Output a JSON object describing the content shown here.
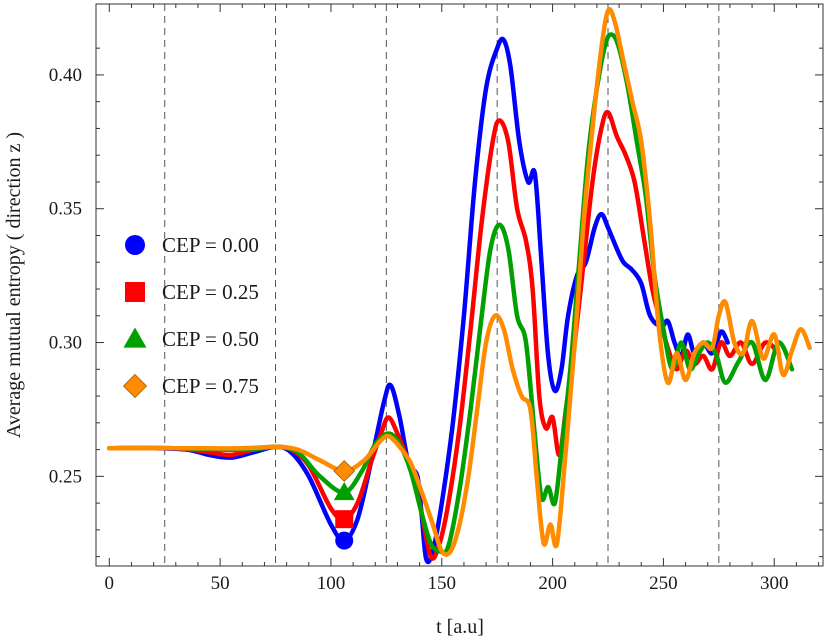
{
  "chart_data": {
    "type": "line",
    "xlabel": "t  [a.u]",
    "ylabel": "Average  mutual  entropy   ( direction  z )",
    "xlim": [
      -6,
      322
    ],
    "ylim": [
      0.2165,
      0.4265
    ],
    "xticks": [
      0,
      50,
      100,
      150,
      200,
      250,
      300
    ],
    "xtick_labels": [
      "0",
      "50",
      "100",
      "150",
      "200",
      "250",
      "300"
    ],
    "yticks": [
      0.25,
      0.3,
      0.35,
      0.4
    ],
    "ytick_labels": [
      "0.25",
      "0.30",
      "0.35",
      "0.40"
    ],
    "vlines": [
      25,
      75,
      125,
      175,
      225,
      275
    ],
    "legend_position": "left-center",
    "series": [
      {
        "name": "CEP = 0.00",
        "color": "#0000ff",
        "marker": "circle",
        "points": [
          [
            0,
            0.2605
          ],
          [
            20,
            0.2605
          ],
          [
            35,
            0.26
          ],
          [
            45,
            0.258
          ],
          [
            55,
            0.257
          ],
          [
            65,
            0.259
          ],
          [
            75,
            0.261
          ],
          [
            82,
            0.259
          ],
          [
            90,
            0.25
          ],
          [
            100,
            0.232
          ],
          [
            106,
            0.226
          ],
          [
            112,
            0.234
          ],
          [
            118,
            0.255
          ],
          [
            124,
            0.278
          ],
          [
            127,
            0.284
          ],
          [
            131,
            0.272
          ],
          [
            135,
            0.255
          ],
          [
            139,
            0.25
          ],
          [
            141,
            0.235
          ],
          [
            143,
            0.219
          ],
          [
            146,
            0.222
          ],
          [
            150,
            0.24
          ],
          [
            155,
            0.27
          ],
          [
            160,
            0.31
          ],
          [
            165,
            0.36
          ],
          [
            170,
            0.395
          ],
          [
            175,
            0.41
          ],
          [
            178,
            0.413
          ],
          [
            181,
            0.403
          ],
          [
            185,
            0.375
          ],
          [
            189,
            0.36
          ],
          [
            192,
            0.363
          ],
          [
            195,
            0.33
          ],
          [
            198,
            0.295
          ],
          [
            201,
            0.282
          ],
          [
            204,
            0.29
          ],
          [
            207,
            0.31
          ],
          [
            211,
            0.325
          ],
          [
            215,
            0.33
          ],
          [
            219,
            0.343
          ],
          [
            222,
            0.348
          ],
          [
            225,
            0.343
          ],
          [
            229,
            0.335
          ],
          [
            232,
            0.33
          ],
          [
            236,
            0.327
          ],
          [
            240,
            0.322
          ],
          [
            244,
            0.31
          ],
          [
            249,
            0.306
          ],
          [
            252,
            0.308
          ],
          [
            255,
            0.3
          ],
          [
            258,
            0.295
          ],
          [
            261,
            0.303
          ],
          [
            264,
            0.296
          ],
          [
            268,
            0.3
          ],
          [
            272,
            0.296
          ],
          [
            276,
            0.304
          ],
          [
            279,
            0.3
          ]
        ],
        "marker_at": [
          106,
          0.226
        ]
      },
      {
        "name": "CEP = 0.25",
        "color": "#ff0000",
        "marker": "square",
        "points": [
          [
            0,
            0.2605
          ],
          [
            30,
            0.2605
          ],
          [
            45,
            0.259
          ],
          [
            55,
            0.258
          ],
          [
            65,
            0.26
          ],
          [
            75,
            0.261
          ],
          [
            82,
            0.26
          ],
          [
            90,
            0.254
          ],
          [
            100,
            0.238
          ],
          [
            106,
            0.234
          ],
          [
            112,
            0.24
          ],
          [
            118,
            0.255
          ],
          [
            123,
            0.267
          ],
          [
            126,
            0.272
          ],
          [
            130,
            0.266
          ],
          [
            135,
            0.255
          ],
          [
            140,
            0.24
          ],
          [
            145,
            0.22
          ],
          [
            149,
            0.225
          ],
          [
            153,
            0.24
          ],
          [
            158,
            0.268
          ],
          [
            163,
            0.305
          ],
          [
            168,
            0.345
          ],
          [
            173,
            0.375
          ],
          [
            176,
            0.383
          ],
          [
            180,
            0.375
          ],
          [
            184,
            0.35
          ],
          [
            188,
            0.338
          ],
          [
            191,
            0.32
          ],
          [
            194,
            0.28
          ],
          [
            197,
            0.268
          ],
          [
            200,
            0.272
          ],
          [
            203,
            0.258
          ],
          [
            206,
            0.275
          ],
          [
            210,
            0.3
          ],
          [
            214,
            0.33
          ],
          [
            218,
            0.36
          ],
          [
            222,
            0.38
          ],
          [
            225,
            0.386
          ],
          [
            229,
            0.377
          ],
          [
            233,
            0.37
          ],
          [
            237,
            0.36
          ],
          [
            241,
            0.34
          ],
          [
            245,
            0.32
          ],
          [
            248,
            0.31
          ],
          [
            252,
            0.298
          ],
          [
            256,
            0.29
          ],
          [
            260,
            0.297
          ],
          [
            264,
            0.292
          ],
          [
            268,
            0.295
          ],
          [
            272,
            0.29
          ],
          [
            276,
            0.3
          ],
          [
            280,
            0.295
          ],
          [
            285,
            0.3
          ],
          [
            290,
            0.292
          ],
          [
            296,
            0.3
          ],
          [
            302,
            0.296
          ]
        ],
        "marker_at": [
          106,
          0.234
        ]
      },
      {
        "name": "CEP = 0.50",
        "color": "#00a000",
        "marker": "triangle",
        "points": [
          [
            0,
            0.2605
          ],
          [
            30,
            0.2605
          ],
          [
            50,
            0.26
          ],
          [
            65,
            0.26
          ],
          [
            75,
            0.261
          ],
          [
            85,
            0.259
          ],
          [
            95,
            0.25
          ],
          [
            106,
            0.244
          ],
          [
            114,
            0.252
          ],
          [
            120,
            0.262
          ],
          [
            126,
            0.266
          ],
          [
            131,
            0.262
          ],
          [
            136,
            0.252
          ],
          [
            141,
            0.236
          ],
          [
            145,
            0.225
          ],
          [
            149,
            0.222
          ],
          [
            153,
            0.224
          ],
          [
            158,
            0.245
          ],
          [
            163,
            0.275
          ],
          [
            168,
            0.31
          ],
          [
            172,
            0.335
          ],
          [
            176,
            0.344
          ],
          [
            180,
            0.335
          ],
          [
            184,
            0.31
          ],
          [
            188,
            0.3
          ],
          [
            192,
            0.265
          ],
          [
            195,
            0.242
          ],
          [
            198,
            0.246
          ],
          [
            201,
            0.24
          ],
          [
            204,
            0.26
          ],
          [
            208,
            0.29
          ],
          [
            212,
            0.33
          ],
          [
            216,
            0.37
          ],
          [
            220,
            0.395
          ],
          [
            224,
            0.412
          ],
          [
            227,
            0.415
          ],
          [
            230,
            0.41
          ],
          [
            234,
            0.395
          ],
          [
            238,
            0.375
          ],
          [
            242,
            0.355
          ],
          [
            246,
            0.325
          ],
          [
            250,
            0.305
          ],
          [
            254,
            0.29
          ],
          [
            258,
            0.3
          ],
          [
            262,
            0.29
          ],
          [
            266,
            0.296
          ],
          [
            270,
            0.3
          ],
          [
            274,
            0.295
          ],
          [
            278,
            0.285
          ],
          [
            284,
            0.293
          ],
          [
            290,
            0.3
          ],
          [
            296,
            0.286
          ],
          [
            302,
            0.3
          ],
          [
            308,
            0.29
          ]
        ],
        "marker_at": [
          106,
          0.244
        ]
      },
      {
        "name": "CEP = 0.75",
        "color": "#ff8c00",
        "marker": "diamond",
        "points": [
          [
            0,
            0.2605
          ],
          [
            30,
            0.2605
          ],
          [
            60,
            0.2605
          ],
          [
            75,
            0.261
          ],
          [
            85,
            0.26
          ],
          [
            95,
            0.256
          ],
          [
            106,
            0.252
          ],
          [
            115,
            0.256
          ],
          [
            122,
            0.263
          ],
          [
            126,
            0.265
          ],
          [
            131,
            0.261
          ],
          [
            136,
            0.255
          ],
          [
            141,
            0.244
          ],
          [
            146,
            0.232
          ],
          [
            150,
            0.222
          ],
          [
            154,
            0.222
          ],
          [
            158,
            0.232
          ],
          [
            162,
            0.25
          ],
          [
            166,
            0.275
          ],
          [
            170,
            0.3
          ],
          [
            174,
            0.31
          ],
          [
            178,
            0.305
          ],
          [
            182,
            0.29
          ],
          [
            186,
            0.28
          ],
          [
            190,
            0.275
          ],
          [
            193,
            0.248
          ],
          [
            196,
            0.225
          ],
          [
            199,
            0.232
          ],
          [
            202,
            0.225
          ],
          [
            206,
            0.26
          ],
          [
            210,
            0.3
          ],
          [
            214,
            0.345
          ],
          [
            218,
            0.38
          ],
          [
            222,
            0.41
          ],
          [
            225,
            0.424
          ],
          [
            228,
            0.42
          ],
          [
            232,
            0.405
          ],
          [
            236,
            0.39
          ],
          [
            240,
            0.375
          ],
          [
            244,
            0.345
          ],
          [
            248,
            0.305
          ],
          [
            252,
            0.285
          ],
          [
            256,
            0.296
          ],
          [
            260,
            0.286
          ],
          [
            264,
            0.296
          ],
          [
            268,
            0.3
          ],
          [
            272,
            0.298
          ],
          [
            275,
            0.31
          ],
          [
            278,
            0.315
          ],
          [
            282,
            0.3
          ],
          [
            286,
            0.296
          ],
          [
            290,
            0.308
          ],
          [
            295,
            0.294
          ],
          [
            300,
            0.303
          ],
          [
            304,
            0.288
          ],
          [
            308,
            0.297
          ],
          [
            312,
            0.305
          ],
          [
            316,
            0.298
          ]
        ],
        "marker_at": [
          106,
          0.252
        ]
      }
    ]
  }
}
